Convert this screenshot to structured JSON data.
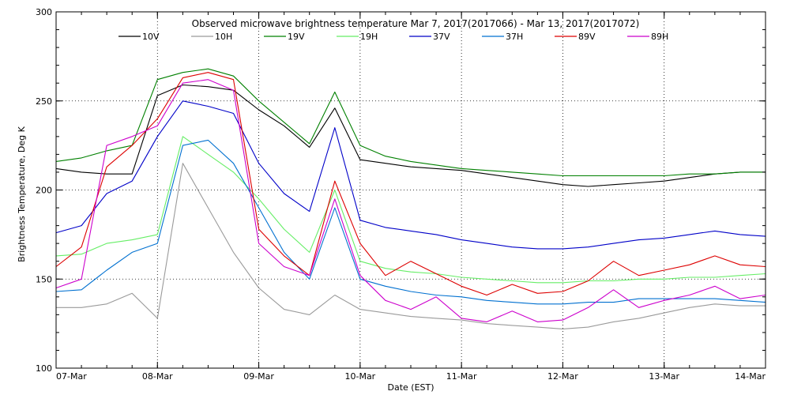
{
  "chart_data": {
    "type": "line",
    "title": "Observed microwave brightness temperature Mar  7, 2017(2017066) - Mar 13, 2017(2017072)",
    "xlabel": "Date (EST)",
    "ylabel": "Brightness Temperature, Deg K",
    "xlim": [
      "2017-03-07T00:00",
      "2017-03-14T00:00"
    ],
    "ylim": [
      100,
      300
    ],
    "grid": true,
    "legend_position": "top",
    "x_ticks": [
      "07-Mar",
      "08-Mar",
      "09-Mar",
      "10-Mar",
      "11-Mar",
      "12-Mar",
      "13-Mar",
      "14-Mar"
    ],
    "y_ticks": [
      "100",
      "150",
      "200",
      "250",
      "300"
    ],
    "x": [
      "2017-03-07T00:00",
      "2017-03-07T06:00",
      "2017-03-07T12:00",
      "2017-03-07T18:00",
      "2017-03-08T00:00",
      "2017-03-08T06:00",
      "2017-03-08T12:00",
      "2017-03-08T18:00",
      "2017-03-09T00:00",
      "2017-03-09T06:00",
      "2017-03-09T12:00",
      "2017-03-09T18:00",
      "2017-03-10T00:00",
      "2017-03-10T06:00",
      "2017-03-10T12:00",
      "2017-03-10T18:00",
      "2017-03-11T00:00",
      "2017-03-11T06:00",
      "2017-03-11T12:00",
      "2017-03-11T18:00",
      "2017-03-12T00:00",
      "2017-03-12T06:00",
      "2017-03-12T12:00",
      "2017-03-12T18:00",
      "2017-03-13T00:00",
      "2017-03-13T06:00",
      "2017-03-13T12:00",
      "2017-03-13T18:00",
      "2017-03-14T00:00"
    ],
    "series": [
      {
        "name": "10V",
        "color": "#000000",
        "values": [
          212,
          210,
          209,
          209,
          253,
          259,
          258,
          256,
          245,
          236,
          224,
          246,
          217,
          215,
          213,
          212,
          211,
          209,
          207,
          205,
          203,
          202,
          203,
          204,
          205,
          207,
          209,
          210,
          210
        ]
      },
      {
        "name": "10H",
        "color": "#9a9a9a",
        "values": [
          134,
          134,
          136,
          142,
          128,
          215,
          190,
          165,
          145,
          133,
          130,
          141,
          133,
          131,
          129,
          128,
          127,
          125,
          124,
          123,
          122,
          123,
          126,
          128,
          131,
          134,
          136,
          135,
          135
        ]
      },
      {
        "name": "19V",
        "color": "#008000",
        "values": [
          216,
          218,
          222,
          225,
          262,
          266,
          268,
          264,
          250,
          238,
          226,
          255,
          225,
          219,
          216,
          214,
          212,
          211,
          210,
          209,
          208,
          208,
          208,
          208,
          208,
          209,
          209,
          210,
          210
        ]
      },
      {
        "name": "19H",
        "color": "#66ee66",
        "values": [
          163,
          164,
          170,
          172,
          175,
          230,
          220,
          210,
          195,
          178,
          165,
          200,
          160,
          156,
          154,
          153,
          151,
          150,
          149,
          148,
          148,
          149,
          149,
          150,
          150,
          151,
          151,
          152,
          153
        ]
      },
      {
        "name": "37V",
        "color": "#0000c8",
        "values": [
          176,
          180,
          198,
          205,
          230,
          250,
          247,
          243,
          215,
          198,
          188,
          235,
          183,
          179,
          177,
          175,
          172,
          170,
          168,
          167,
          167,
          168,
          170,
          172,
          173,
          175,
          177,
          175,
          174
        ]
      },
      {
        "name": "37H",
        "color": "#0070d0",
        "values": [
          143,
          144,
          155,
          165,
          170,
          225,
          228,
          215,
          190,
          165,
          150,
          190,
          150,
          146,
          143,
          141,
          140,
          138,
          137,
          136,
          136,
          137,
          137,
          139,
          139,
          139,
          139,
          138,
          137
        ]
      },
      {
        "name": "89V",
        "color": "#dd0000",
        "values": [
          157,
          168,
          213,
          225,
          240,
          263,
          266,
          262,
          178,
          163,
          152,
          205,
          170,
          152,
          160,
          153,
          146,
          141,
          147,
          142,
          143,
          149,
          160,
          152,
          155,
          158,
          163,
          158,
          157
        ]
      },
      {
        "name": "89H",
        "color": "#cc00cc",
        "values": [
          145,
          150,
          225,
          230,
          236,
          260,
          262,
          256,
          170,
          157,
          152,
          195,
          152,
          138,
          133,
          140,
          128,
          126,
          132,
          126,
          127,
          134,
          144,
          134,
          138,
          141,
          146,
          139,
          141
        ]
      }
    ]
  }
}
